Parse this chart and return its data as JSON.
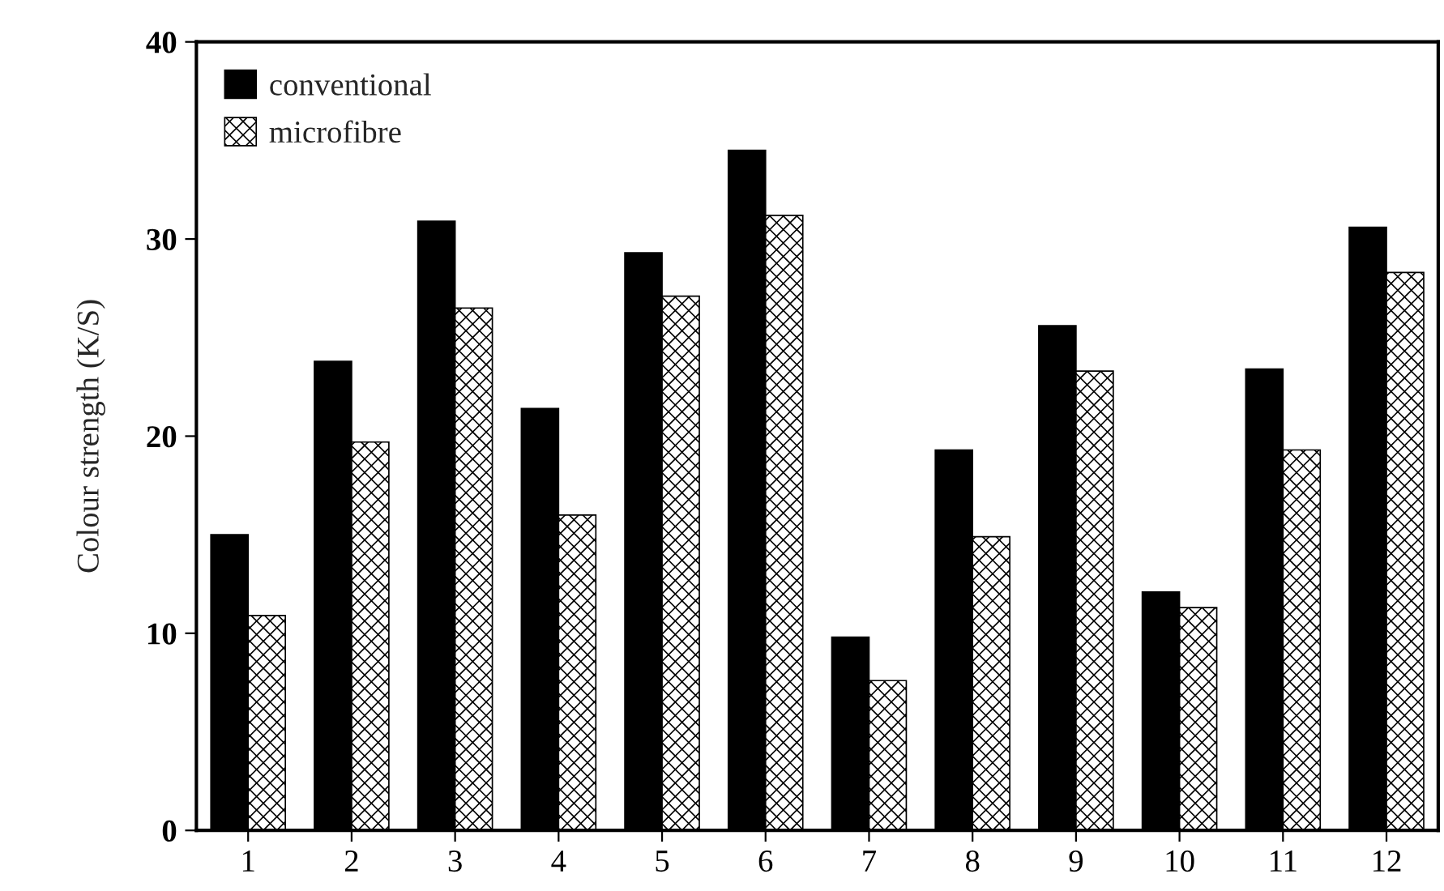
{
  "chart_data": {
    "type": "bar",
    "ylabel": "Colour strength (K/S)",
    "categories": [
      "1",
      "2",
      "3",
      "4",
      "5",
      "6",
      "7",
      "8",
      "9",
      "10",
      "11",
      "12"
    ],
    "series": [
      {
        "name": "conventional",
        "color": "#000000",
        "values": [
          15.0,
          23.8,
          30.9,
          21.4,
          29.3,
          34.5,
          9.8,
          19.3,
          25.6,
          12.1,
          23.4,
          30.6
        ]
      },
      {
        "name": "microfibre",
        "color": "#000000",
        "values": [
          10.9,
          19.7,
          26.5,
          16.0,
          27.1,
          31.2,
          7.6,
          14.9,
          23.3,
          11.3,
          19.3,
          28.3
        ]
      }
    ],
    "ylim": [
      0,
      40
    ],
    "yticks": [
      0,
      10,
      20,
      30,
      40
    ],
    "grid": false,
    "legend": "top left"
  }
}
